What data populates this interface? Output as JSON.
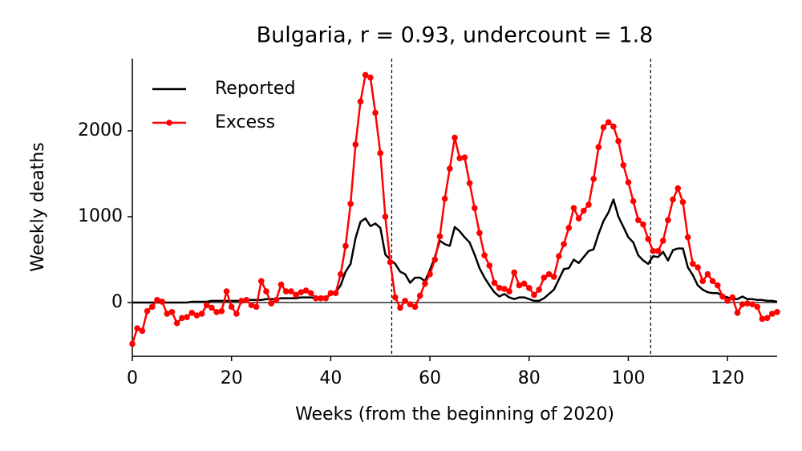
{
  "chart_data": {
    "type": "line",
    "title": "Bulgaria, r = 0.93, undercount = 1.8",
    "xlabel": "Weeks (from the beginning of 2020)",
    "ylabel": "Weekly deaths",
    "x": [
      0,
      1,
      2,
      3,
      4,
      5,
      6,
      7,
      8,
      9,
      10,
      11,
      12,
      13,
      14,
      15,
      16,
      17,
      18,
      19,
      20,
      21,
      22,
      23,
      24,
      25,
      26,
      27,
      28,
      29,
      30,
      31,
      32,
      33,
      34,
      35,
      36,
      37,
      38,
      39,
      40,
      41,
      42,
      43,
      44,
      45,
      46,
      47,
      48,
      49,
      50,
      51,
      52,
      53,
      54,
      55,
      56,
      57,
      58,
      59,
      60,
      61,
      62,
      63,
      64,
      65,
      66,
      67,
      68,
      69,
      70,
      71,
      72,
      73,
      74,
      75,
      76,
      77,
      78,
      79,
      80,
      81,
      82,
      83,
      84,
      85,
      86,
      87,
      88,
      89,
      90,
      91,
      92,
      93,
      94,
      95,
      96,
      97,
      98,
      99,
      100,
      101,
      102,
      103,
      104,
      105,
      106,
      107,
      108,
      109,
      110,
      111,
      112,
      113,
      114,
      115,
      116,
      117,
      118,
      119,
      120,
      121,
      122,
      123,
      124,
      125,
      126,
      127,
      128,
      129,
      130
    ],
    "series": [
      {
        "name": "Reported",
        "color": "#000000",
        "markers": false,
        "values": [
          0,
          0,
          0,
          0,
          0,
          0,
          0,
          0,
          0,
          0,
          0,
          0,
          10,
          10,
          10,
          10,
          20,
          20,
          20,
          20,
          20,
          20,
          20,
          30,
          30,
          30,
          30,
          40,
          40,
          40,
          50,
          50,
          50,
          50,
          60,
          60,
          60,
          50,
          50,
          60,
          90,
          120,
          200,
          360,
          450,
          750,
          940,
          980,
          890,
          920,
          870,
          560,
          500,
          450,
          360,
          330,
          230,
          290,
          290,
          250,
          380,
          530,
          720,
          680,
          660,
          880,
          830,
          760,
          700,
          560,
          400,
          290,
          200,
          120,
          70,
          100,
          60,
          40,
          60,
          60,
          40,
          20,
          20,
          50,
          100,
          150,
          270,
          390,
          400,
          500,
          460,
          530,
          600,
          620,
          800,
          950,
          1050,
          1200,
          1000,
          880,
          760,
          700,
          550,
          490,
          450,
          540,
          530,
          590,
          490,
          610,
          630,
          630,
          410,
          320,
          200,
          150,
          120,
          110,
          110,
          80,
          60,
          40,
          40,
          70,
          40,
          40,
          30,
          30,
          20,
          20,
          10
        ]
      },
      {
        "name": "Excess",
        "color": "#ff0000",
        "markers": true,
        "values": [
          -480,
          -300,
          -330,
          -100,
          -50,
          30,
          10,
          -130,
          -110,
          -240,
          -180,
          -170,
          -120,
          -150,
          -130,
          -30,
          -60,
          -110,
          -100,
          130,
          -50,
          -130,
          20,
          30,
          -30,
          -50,
          250,
          130,
          -10,
          30,
          210,
          130,
          130,
          90,
          120,
          140,
          110,
          50,
          50,
          50,
          110,
          110,
          330,
          660,
          1150,
          1840,
          2340,
          2650,
          2620,
          2210,
          1740,
          1000,
          470,
          60,
          -60,
          20,
          -20,
          -50,
          80,
          220,
          330,
          500,
          770,
          1210,
          1560,
          1920,
          1680,
          1690,
          1390,
          1100,
          810,
          550,
          430,
          230,
          170,
          160,
          130,
          350,
          200,
          220,
          170,
          90,
          150,
          290,
          330,
          300,
          540,
          680,
          870,
          1100,
          980,
          1070,
          1140,
          1440,
          1810,
          2040,
          2100,
          2050,
          1880,
          1600,
          1400,
          1180,
          960,
          910,
          740,
          600,
          600,
          720,
          960,
          1200,
          1330,
          1170,
          760,
          450,
          410,
          250,
          330,
          250,
          200,
          70,
          20,
          60,
          -120,
          -20,
          -10,
          -20,
          -50,
          -190,
          -180,
          -130,
          -110
        ]
      }
    ],
    "vlines": [
      52.3,
      104.5
    ],
    "hline": 0,
    "xlim": [
      0,
      130
    ],
    "xticks": [
      0,
      20,
      40,
      60,
      80,
      100,
      120
    ],
    "ylim": [
      -626,
      2841
    ],
    "yticks": [
      0,
      1000,
      2000
    ],
    "grid": false,
    "legend": "upper left"
  }
}
